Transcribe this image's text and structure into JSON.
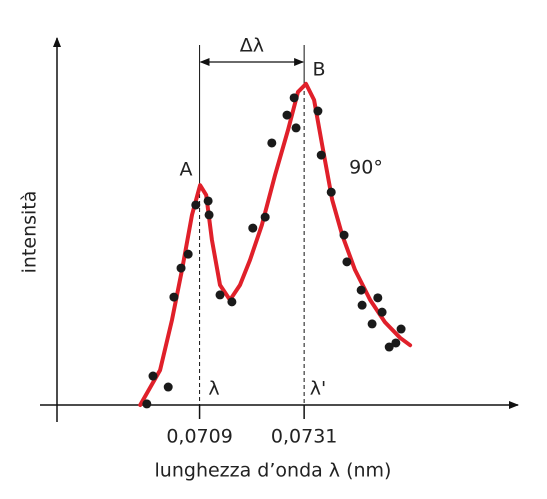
{
  "chart_data": {
    "type": "scatter",
    "xlabel": "lunghezza d’onda λ (nm)",
    "ylabel": "intensità",
    "xlim": [
      0.0679,
      0.0776
    ],
    "ylim": [
      0,
      100
    ],
    "xticks": [
      {
        "value": 0.0709,
        "label": "0,0709"
      },
      {
        "value": 0.0731,
        "label": "0,0731"
      }
    ],
    "annotations": [
      "A",
      "B",
      "Δλ",
      "λ",
      "λ'",
      "90°"
    ],
    "points": {
      "color": "#1a1a1a",
      "x": [
        0.06979,
        0.06992,
        0.07024,
        0.07036,
        0.07051,
        0.07066,
        0.07082,
        0.07108,
        0.0711,
        0.07133,
        0.07158,
        0.07202,
        0.07228,
        0.07242,
        0.07274,
        0.07289,
        0.07293,
        0.07339,
        0.07346,
        0.07367,
        0.07394,
        0.074,
        0.0743,
        0.07432,
        0.07453,
        0.07465,
        0.07474,
        0.07489,
        0.07503,
        0.07514
      ],
      "y": [
        0.3,
        7.9,
        4.9,
        29.4,
        37.3,
        41.1,
        54.5,
        55.6,
        51.8,
        30,
        28.1,
        48.2,
        51.2,
        71.4,
        79,
        83.7,
        75.5,
        80.1,
        68.1,
        58,
        46.3,
        39,
        31.3,
        27.2,
        22.1,
        29.2,
        25.3,
        15.8,
        16.9,
        20.7
      ]
    },
    "curve": {
      "color": "#e0202a",
      "x": [
        0.06965,
        0.07007,
        0.07032,
        0.07053,
        0.07074,
        0.07091,
        0.07104,
        0.07116,
        0.07133,
        0.07154,
        0.07175,
        0.07196,
        0.07221,
        0.07249,
        0.07276,
        0.07297,
        0.07314,
        0.07331,
        0.07348,
        0.07369,
        0.0739,
        0.07417,
        0.07449,
        0.0748,
        0.07512,
        0.07533
      ],
      "y": [
        0,
        9.5,
        23.2,
        36.8,
        51.8,
        59.9,
        57.2,
        45,
        32.7,
        28.6,
        32.7,
        39.5,
        49,
        62.7,
        74.9,
        85.3,
        87.5,
        83.1,
        70.8,
        55.9,
        46.3,
        36.8,
        28.6,
        22.6,
        18.3,
        16.3
      ]
    }
  }
}
